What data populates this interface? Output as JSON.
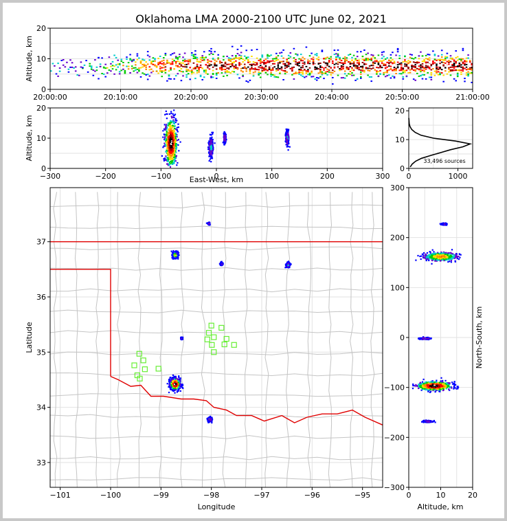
{
  "title": "Oklahoma LMA 2000-2100 UTC June 02, 2021",
  "chart_data": [
    {
      "panel": "altitude-time",
      "type": "heatmap",
      "ylabel": "Altitude, km",
      "ylim": [
        0,
        20
      ],
      "yticks": [
        "0",
        "10",
        "20"
      ],
      "xlim": [
        "20:00:00",
        "21:00:00"
      ],
      "xticks": [
        "20:00:00",
        "20:10:00",
        "20:20:00",
        "20:30:00",
        "20:40:00",
        "20:50:00",
        "21:00:00"
      ],
      "density_profile": [
        {
          "minute": 1,
          "amount": 0.12
        },
        {
          "minute": 3,
          "amount": 0.15
        },
        {
          "minute": 5,
          "amount": 0.2
        },
        {
          "minute": 8,
          "amount": 0.3
        },
        {
          "minute": 11,
          "amount": 0.45
        },
        {
          "minute": 14,
          "amount": 0.6
        },
        {
          "minute": 17,
          "amount": 0.75
        },
        {
          "minute": 20,
          "amount": 0.8
        },
        {
          "minute": 24,
          "amount": 0.8
        },
        {
          "minute": 28,
          "amount": 0.85
        },
        {
          "minute": 32,
          "amount": 0.95
        },
        {
          "minute": 36,
          "amount": 1.0
        },
        {
          "minute": 40,
          "amount": 0.95
        },
        {
          "minute": 44,
          "amount": 0.9
        },
        {
          "minute": 48,
          "amount": 0.85
        },
        {
          "minute": 52,
          "amount": 0.9
        },
        {
          "minute": 56,
          "amount": 0.95
        },
        {
          "minute": 59,
          "amount": 0.9
        }
      ],
      "altitude_center_km": 7.5
    },
    {
      "panel": "altitude-east-west",
      "type": "heatmap",
      "xlabel": "East-West, km",
      "ylabel": "Altitude, km",
      "xlim": [
        -300,
        300
      ],
      "ylim": [
        0,
        20
      ],
      "xticks": [
        "−300",
        "−200",
        "−100",
        "0",
        "100",
        "200",
        "300"
      ],
      "yticks": [
        "0",
        "10",
        "20"
      ],
      "clusters": [
        {
          "x_km": -82,
          "alt_km": 8.5,
          "x_spread": 12,
          "alt_spread": 9,
          "intensity": 1.0
        },
        {
          "x_km": -10,
          "alt_km": 7,
          "x_spread": 4,
          "alt_spread": 4,
          "intensity": 0.3
        },
        {
          "x_km": 15,
          "alt_km": 10,
          "x_spread": 2,
          "alt_spread": 2,
          "intensity": 0.25
        },
        {
          "x_km": 128,
          "alt_km": 10,
          "x_spread": 3,
          "alt_spread": 3,
          "intensity": 0.25
        }
      ]
    },
    {
      "panel": "altitude-histogram",
      "type": "line",
      "xlim": [
        0,
        1300
      ],
      "ylim": [
        0,
        21
      ],
      "xticks": [
        "0",
        "1000"
      ],
      "yticks": [
        "0",
        "10",
        "20"
      ],
      "annotation": "33,496 sources",
      "profile": [
        {
          "alt_km": 0.5,
          "count": 30
        },
        {
          "alt_km": 1.5,
          "count": 70
        },
        {
          "alt_km": 2.5,
          "count": 140
        },
        {
          "alt_km": 3.5,
          "count": 260
        },
        {
          "alt_km": 4.5,
          "count": 450
        },
        {
          "alt_km": 5.5,
          "count": 650
        },
        {
          "alt_km": 6.5,
          "count": 850
        },
        {
          "alt_km": 7.5,
          "count": 1100
        },
        {
          "alt_km": 8.5,
          "count": 1250
        },
        {
          "alt_km": 9.5,
          "count": 950
        },
        {
          "alt_km": 10.5,
          "count": 500
        },
        {
          "alt_km": 11.5,
          "count": 250
        },
        {
          "alt_km": 12.5,
          "count": 130
        },
        {
          "alt_km": 13.5,
          "count": 60
        },
        {
          "alt_km": 14.5,
          "count": 25
        },
        {
          "alt_km": 15.5,
          "count": 10
        },
        {
          "alt_km": 16.5,
          "count": 5
        },
        {
          "alt_km": 17.5,
          "count": 2
        }
      ]
    },
    {
      "panel": "plan-view",
      "type": "scatter",
      "xlabel": "Longitude",
      "ylabel": "Latitude",
      "xlim": [
        -101.2,
        -94.6
      ],
      "ylim": [
        32.55,
        37.98
      ],
      "xticks": [
        "−101",
        "−100",
        "−99",
        "−98",
        "−97",
        "−96",
        "−95"
      ],
      "yticks": [
        "33",
        "34",
        "35",
        "36",
        "37"
      ],
      "clusters": [
        {
          "lon": -98.72,
          "lat": 34.42,
          "spread": 0.12,
          "intensity": 1.0
        },
        {
          "lon": -98.72,
          "lat": 36.76,
          "spread": 0.06,
          "intensity": 0.55
        },
        {
          "lon": -98.03,
          "lat": 33.78,
          "spread": 0.05,
          "intensity": 0.25
        },
        {
          "lon": -96.48,
          "lat": 36.58,
          "spread": 0.05,
          "intensity": 0.25
        },
        {
          "lon": -97.8,
          "lat": 36.6,
          "spread": 0.03,
          "intensity": 0.2
        },
        {
          "lon": -98.05,
          "lat": 37.33,
          "spread": 0.02,
          "intensity": 0.2
        },
        {
          "lon": -98.59,
          "lat": 35.25,
          "spread": 0.02,
          "intensity": 0.2
        }
      ],
      "stations": [
        {
          "lon": -99.43,
          "lat": 34.97
        },
        {
          "lon": -99.35,
          "lat": 34.85
        },
        {
          "lon": -99.53,
          "lat": 34.76
        },
        {
          "lon": -99.32,
          "lat": 34.69
        },
        {
          "lon": -99.47,
          "lat": 34.58
        },
        {
          "lon": -99.42,
          "lat": 34.52
        },
        {
          "lon": -99.05,
          "lat": 34.7
        },
        {
          "lon": -98.0,
          "lat": 35.48
        },
        {
          "lon": -97.8,
          "lat": 35.44
        },
        {
          "lon": -98.05,
          "lat": 35.35
        },
        {
          "lon": -97.95,
          "lat": 35.27
        },
        {
          "lon": -98.08,
          "lat": 35.23
        },
        {
          "lon": -97.7,
          "lat": 35.24
        },
        {
          "lon": -97.99,
          "lat": 35.13
        },
        {
          "lon": -97.74,
          "lat": 35.14
        },
        {
          "lon": -97.55,
          "lat": 35.13
        },
        {
          "lon": -97.95,
          "lat": 35.0
        }
      ]
    },
    {
      "panel": "north-south-altitude",
      "type": "heatmap",
      "xlabel": "Altitude, km",
      "ylabel": "North-South, km",
      "xlim": [
        0,
        20
      ],
      "ylim": [
        -300,
        300
      ],
      "xticks": [
        "0",
        "10",
        "20"
      ],
      "yticks": [
        "−300",
        "−200",
        "−100",
        "0",
        "100",
        "200",
        "300"
      ],
      "clusters": [
        {
          "alt_km": 8,
          "y_km": -97,
          "alt_spread": 6,
          "y_spread": 10,
          "intensity": 1.0
        },
        {
          "alt_km": 10,
          "y_km": 162,
          "alt_spread": 6,
          "y_spread": 10,
          "intensity": 0.65
        },
        {
          "alt_km": 5,
          "y_km": -2,
          "alt_spread": 2,
          "y_spread": 2,
          "intensity": 0.25
        },
        {
          "alt_km": 11,
          "y_km": 227,
          "alt_spread": 1,
          "y_spread": 2,
          "intensity": 0.15
        },
        {
          "alt_km": 6,
          "y_km": -168,
          "alt_spread": 2,
          "y_spread": 2,
          "intensity": 0.2
        }
      ]
    }
  ]
}
